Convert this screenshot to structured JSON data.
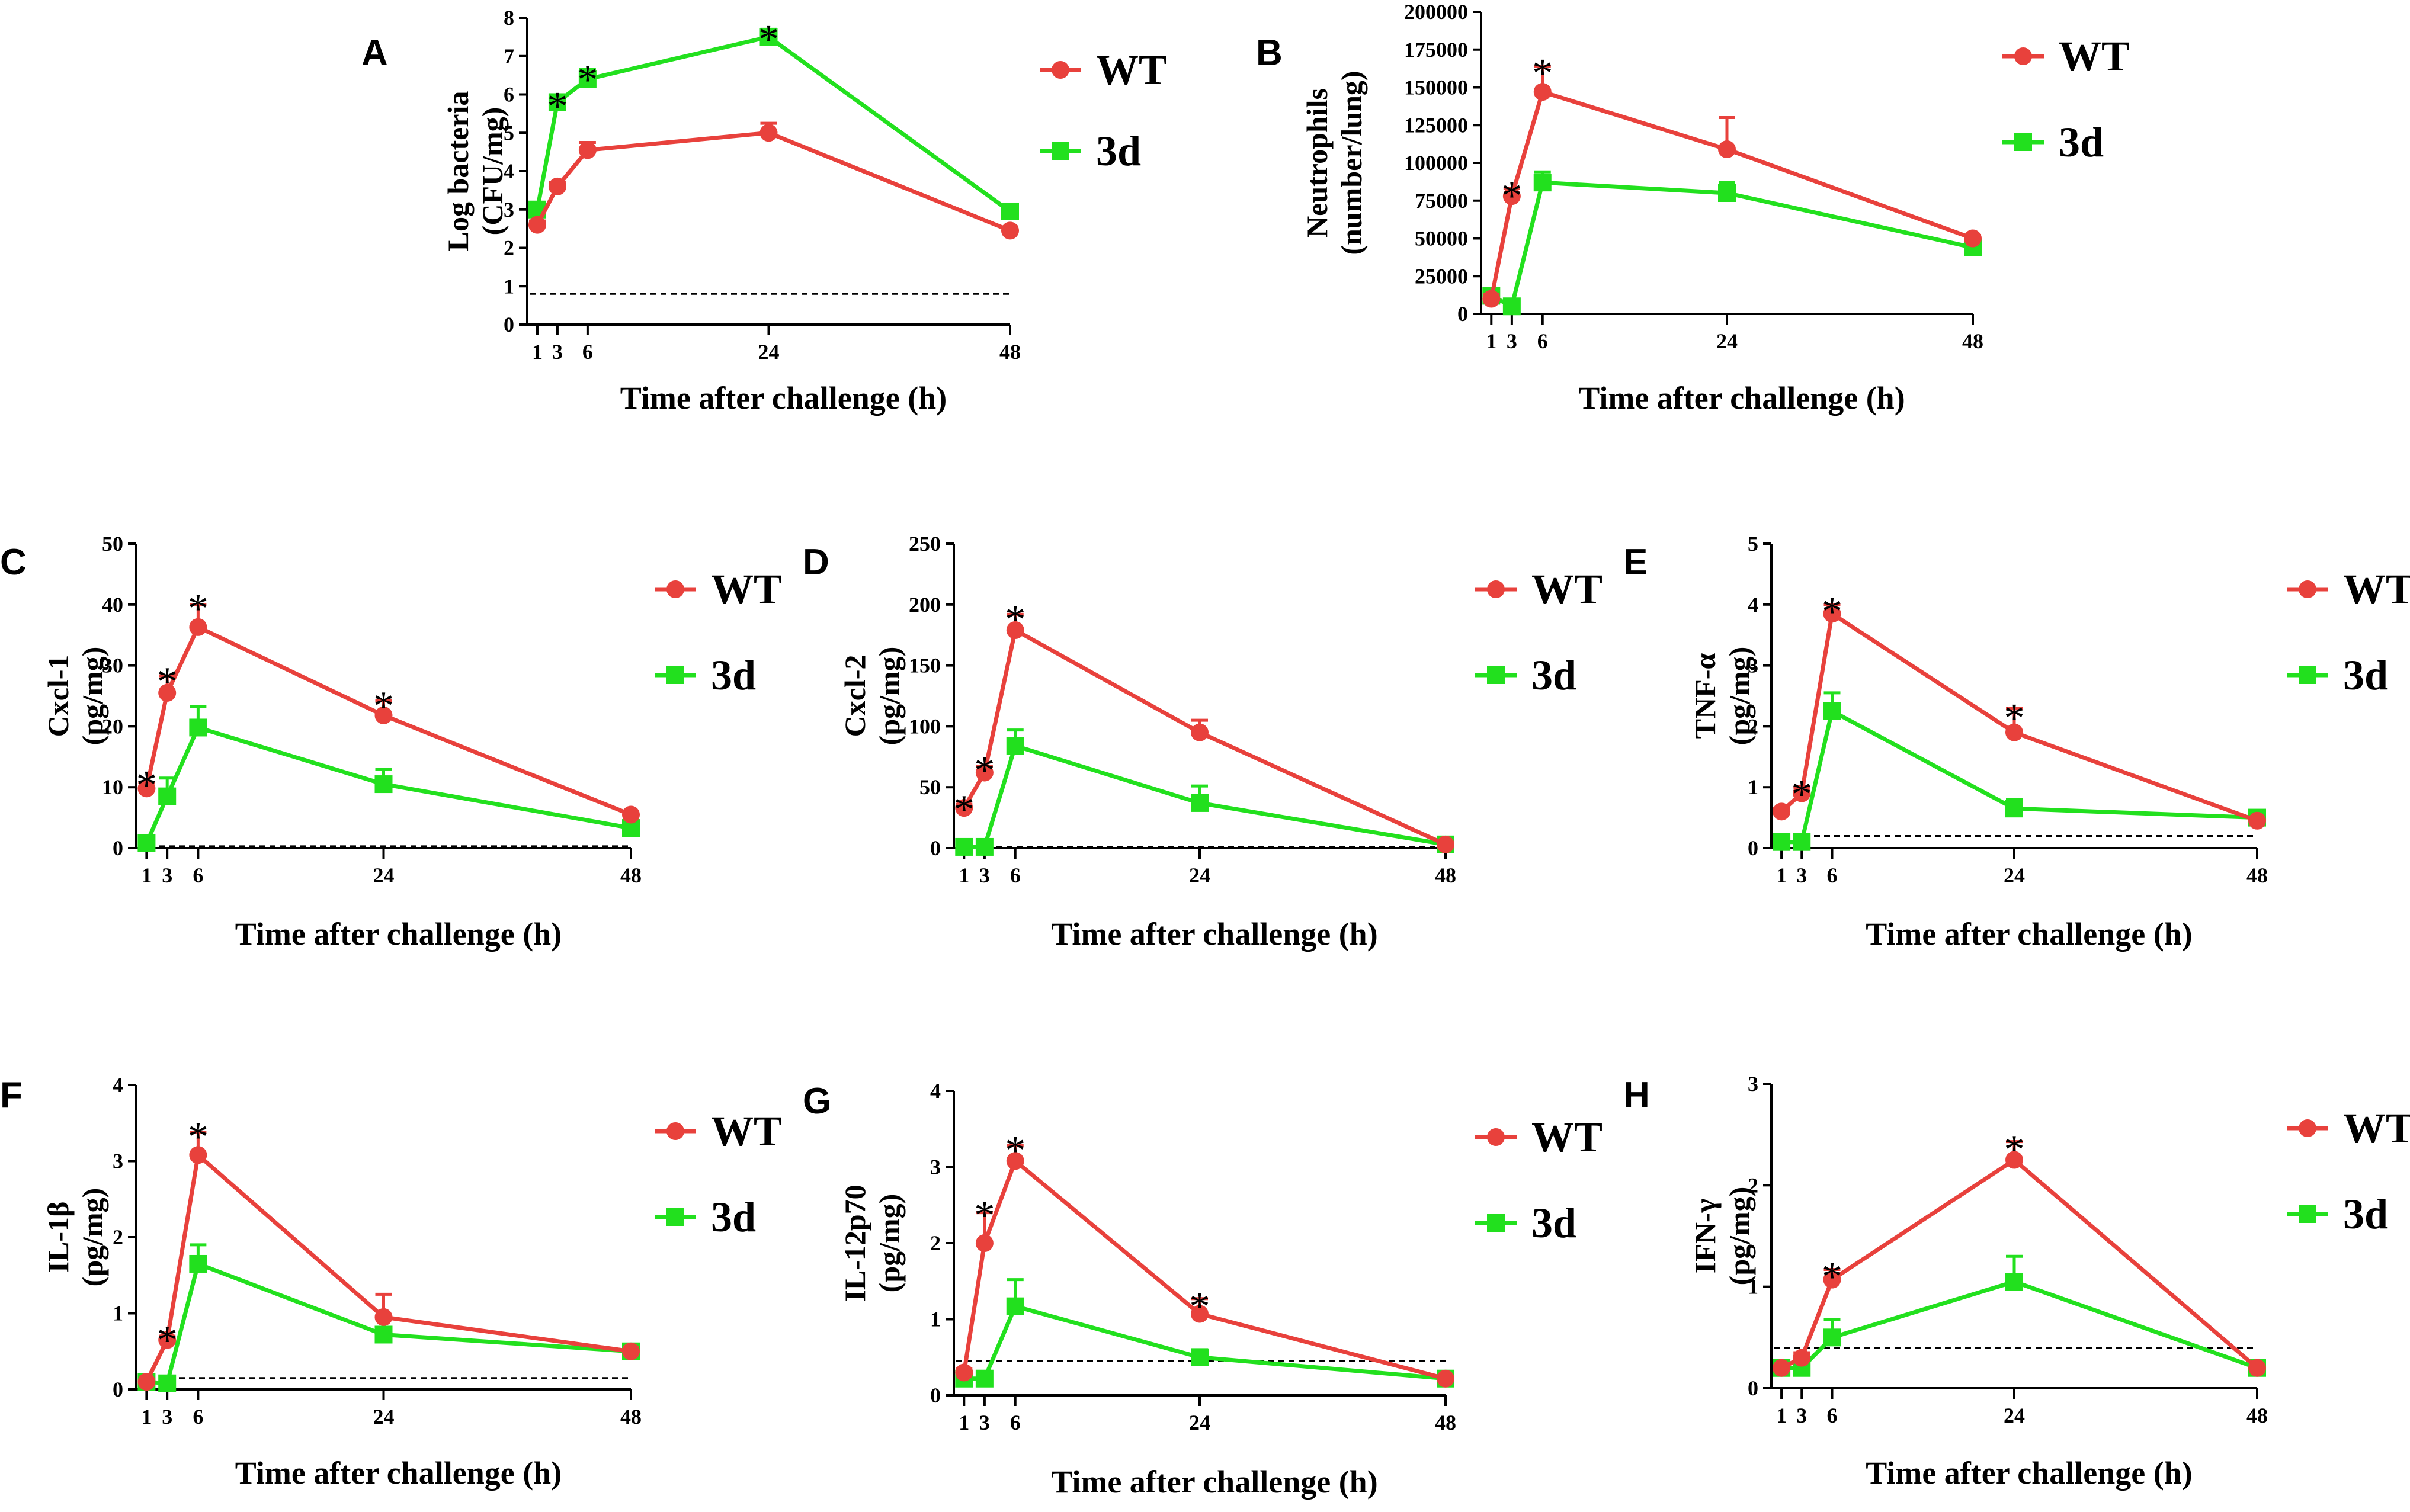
{
  "figure": {
    "legend_labels": [
      "WT",
      "3d"
    ],
    "colors": {
      "WT": "#e8413c",
      "3d": "#22e01e",
      "axis": "#000000",
      "threshold": "#000000"
    }
  },
  "chart_data": [
    {
      "panel": "A",
      "type": "line",
      "title": "",
      "xlabel": "Time after challenge (h)",
      "ylabel_lines": [
        "Log bacteria",
        "(CFU/mg)"
      ],
      "x": [
        1,
        3,
        6,
        24,
        48
      ],
      "xticks": [
        "1",
        "3",
        "6",
        "24",
        "48"
      ],
      "ylim": [
        0,
        8
      ],
      "yticks": [
        "0",
        "1",
        "2",
        "3",
        "4",
        "5",
        "6",
        "7",
        "8"
      ],
      "threshold": 0.8,
      "series": [
        {
          "name": "WT",
          "values": [
            2.6,
            3.6,
            4.55,
            5.0,
            2.45
          ],
          "errors": [
            0.1,
            0.1,
            0.2,
            0.25,
            0.1
          ]
        },
        {
          "name": "3d",
          "values": [
            3.0,
            5.8,
            6.4,
            7.5,
            2.95
          ],
          "errors": [
            0.15,
            0.15,
            0.25,
            0.2,
            0.15
          ]
        }
      ],
      "stars": [
        {
          "x": 3,
          "y": 5.95
        },
        {
          "x": 6,
          "y": 6.65
        },
        {
          "x": 24,
          "y": 7.7
        }
      ]
    },
    {
      "panel": "B",
      "type": "line",
      "title": "",
      "xlabel": "Time after challenge (h)",
      "ylabel_lines": [
        "Neutrophils",
        "(number/lung)"
      ],
      "x": [
        1,
        3,
        6,
        24,
        48
      ],
      "xticks": [
        "1",
        "3",
        "6",
        "24",
        "48"
      ],
      "ylim": [
        0,
        200000
      ],
      "yticks": [
        "0",
        "25000",
        "50000",
        "75000",
        "100000",
        "125000",
        "150000",
        "175000",
        "200000"
      ],
      "threshold": null,
      "series": [
        {
          "name": "WT",
          "values": [
            10000,
            78000,
            147000,
            109000,
            50000
          ],
          "errors": [
            3000,
            5000,
            17000,
            21000,
            2000
          ]
        },
        {
          "name": "3d",
          "values": [
            12000,
            5000,
            87000,
            80000,
            44000
          ],
          "errors": [
            3000,
            2000,
            7000,
            7000,
            3000
          ]
        }
      ],
      "stars": [
        {
          "x": 3,
          "y": 85000
        },
        {
          "x": 6,
          "y": 166000
        }
      ]
    },
    {
      "panel": "C",
      "type": "line",
      "title": "",
      "xlabel": "Time after challenge (h)",
      "ylabel_lines": [
        "Cxcl-1",
        "(pg/mg)"
      ],
      "x": [
        1,
        3,
        6,
        24,
        48
      ],
      "xticks": [
        "1",
        "3",
        "6",
        "24",
        "48"
      ],
      "ylim": [
        0,
        50
      ],
      "yticks": [
        "0",
        "10",
        "20",
        "30",
        "40",
        "50"
      ],
      "threshold": 0.3,
      "series": [
        {
          "name": "WT",
          "values": [
            9.8,
            25.5,
            36.3,
            21.8,
            5.5
          ],
          "errors": [
            1.0,
            2.8,
            3.7,
            2.4,
            0.5
          ]
        },
        {
          "name": "3d",
          "values": [
            0.8,
            8.5,
            19.8,
            10.5,
            3.3
          ],
          "errors": [
            0.3,
            3.0,
            3.5,
            2.4,
            0.5
          ]
        }
      ],
      "stars": [
        {
          "x": 1,
          "y": 12
        },
        {
          "x": 3,
          "y": 29
        },
        {
          "x": 6,
          "y": 41
        },
        {
          "x": 24,
          "y": 25
        }
      ]
    },
    {
      "panel": "D",
      "type": "line",
      "title": "",
      "xlabel": "Time after challenge (h)",
      "ylabel_lines": [
        "Cxcl-2",
        "(pg/mg)"
      ],
      "x": [
        1,
        3,
        6,
        24,
        48
      ],
      "xticks": [
        "1",
        "3",
        "6",
        "24",
        "48"
      ],
      "ylim": [
        0,
        250
      ],
      "yticks": [
        "0",
        "50",
        "100",
        "150",
        "200",
        "250"
      ],
      "threshold": 1,
      "series": [
        {
          "name": "WT",
          "values": [
            33,
            62,
            179,
            95,
            3
          ],
          "errors": [
            3,
            5,
            13,
            10,
            1
          ]
        },
        {
          "name": "3d",
          "values": [
            1,
            1,
            84,
            37,
            3
          ],
          "errors": [
            1,
            1,
            13,
            14,
            1
          ]
        }
      ],
      "stars": [
        {
          "x": 1,
          "y": 40
        },
        {
          "x": 3,
          "y": 72
        },
        {
          "x": 6,
          "y": 196
        }
      ]
    },
    {
      "panel": "E",
      "type": "line",
      "title": "",
      "xlabel": "Time after challenge (h)",
      "ylabel_lines": [
        "TNF-α",
        "(pg/mg)"
      ],
      "x": [
        1,
        3,
        6,
        24,
        48
      ],
      "xticks": [
        "1",
        "3",
        "6",
        "24",
        "48"
      ],
      "ylim": [
        0,
        5
      ],
      "yticks": [
        "0",
        "1",
        "2",
        "3",
        "4",
        "5"
      ],
      "threshold": 0.2,
      "series": [
        {
          "name": "WT",
          "values": [
            0.6,
            0.9,
            3.85,
            1.9,
            0.45
          ],
          "errors": [
            0.05,
            0.1,
            0.15,
            0.4,
            0.05
          ]
        },
        {
          "name": "3d",
          "values": [
            0.1,
            0.1,
            2.25,
            0.65,
            0.5
          ],
          "errors": [
            0.05,
            0.05,
            0.3,
            0.15,
            0.05
          ]
        }
      ],
      "stars": [
        {
          "x": 3,
          "y": 1.05
        },
        {
          "x": 6,
          "y": 4.05
        },
        {
          "x": 24,
          "y": 2.3
        }
      ]
    },
    {
      "panel": "F",
      "type": "line",
      "title": "",
      "xlabel": "Time after challenge (h)",
      "ylabel_lines": [
        "IL-1β",
        "(pg/mg)"
      ],
      "x": [
        1,
        3,
        6,
        24,
        48
      ],
      "xticks": [
        "1",
        "3",
        "6",
        "24",
        "48"
      ],
      "ylim": [
        0,
        4
      ],
      "yticks": [
        "0",
        "1",
        "2",
        "3",
        "4"
      ],
      "threshold": 0.15,
      "series": [
        {
          "name": "WT",
          "values": [
            0.1,
            0.65,
            3.08,
            0.95,
            0.5
          ],
          "errors": [
            0.02,
            0.05,
            0.3,
            0.3,
            0.05
          ]
        },
        {
          "name": "3d",
          "values": [
            0.1,
            0.08,
            1.65,
            0.72,
            0.5
          ],
          "errors": [
            0.02,
            0.02,
            0.25,
            0.08,
            0.05
          ]
        }
      ],
      "stars": [
        {
          "x": 3,
          "y": 0.78
        },
        {
          "x": 6,
          "y": 3.45
        }
      ]
    },
    {
      "panel": "G",
      "type": "line",
      "title": "",
      "xlabel": "Time after challenge (h)",
      "ylabel_lines": [
        "IL-12p70",
        "(pg/mg)"
      ],
      "x": [
        1,
        3,
        6,
        24,
        48
      ],
      "xticks": [
        "1",
        "3",
        "6",
        "24",
        "48"
      ],
      "ylim": [
        0,
        4
      ],
      "yticks": [
        "0",
        "1",
        "2",
        "3",
        "4"
      ],
      "threshold": 0.45,
      "series": [
        {
          "name": "WT",
          "values": [
            0.3,
            2.0,
            3.08,
            1.07,
            0.22
          ],
          "errors": [
            0.05,
            0.4,
            0.2,
            0.2,
            0.03
          ]
        },
        {
          "name": "3d",
          "values": [
            0.22,
            0.22,
            1.17,
            0.5,
            0.22
          ],
          "errors": [
            0.03,
            0.03,
            0.35,
            0.1,
            0.03
          ]
        }
      ],
      "stars": [
        {
          "x": 3,
          "y": 2.5
        },
        {
          "x": 6,
          "y": 3.35
        },
        {
          "x": 24,
          "y": 1.3
        }
      ]
    },
    {
      "panel": "H",
      "type": "line",
      "title": "",
      "xlabel": "Time after challenge (h)",
      "ylabel_lines": [
        "IFN-γ",
        "(pg/mg)"
      ],
      "x": [
        1,
        3,
        6,
        24,
        48
      ],
      "xticks": [
        "1",
        "3",
        "6",
        "24",
        "48"
      ],
      "ylim": [
        0,
        3
      ],
      "yticks": [
        "0",
        "1",
        "2",
        "3"
      ],
      "threshold": 0.4,
      "series": [
        {
          "name": "WT",
          "values": [
            0.2,
            0.3,
            1.07,
            2.25,
            0.2
          ],
          "errors": [
            0.02,
            0.05,
            0.1,
            0.18,
            0.02
          ]
        },
        {
          "name": "3d",
          "values": [
            0.2,
            0.2,
            0.5,
            1.05,
            0.2
          ],
          "errors": [
            0.02,
            0.02,
            0.18,
            0.25,
            0.02
          ]
        }
      ],
      "stars": [
        {
          "x": 6,
          "y": 1.2
        },
        {
          "x": 24,
          "y": 2.45
        }
      ]
    }
  ]
}
